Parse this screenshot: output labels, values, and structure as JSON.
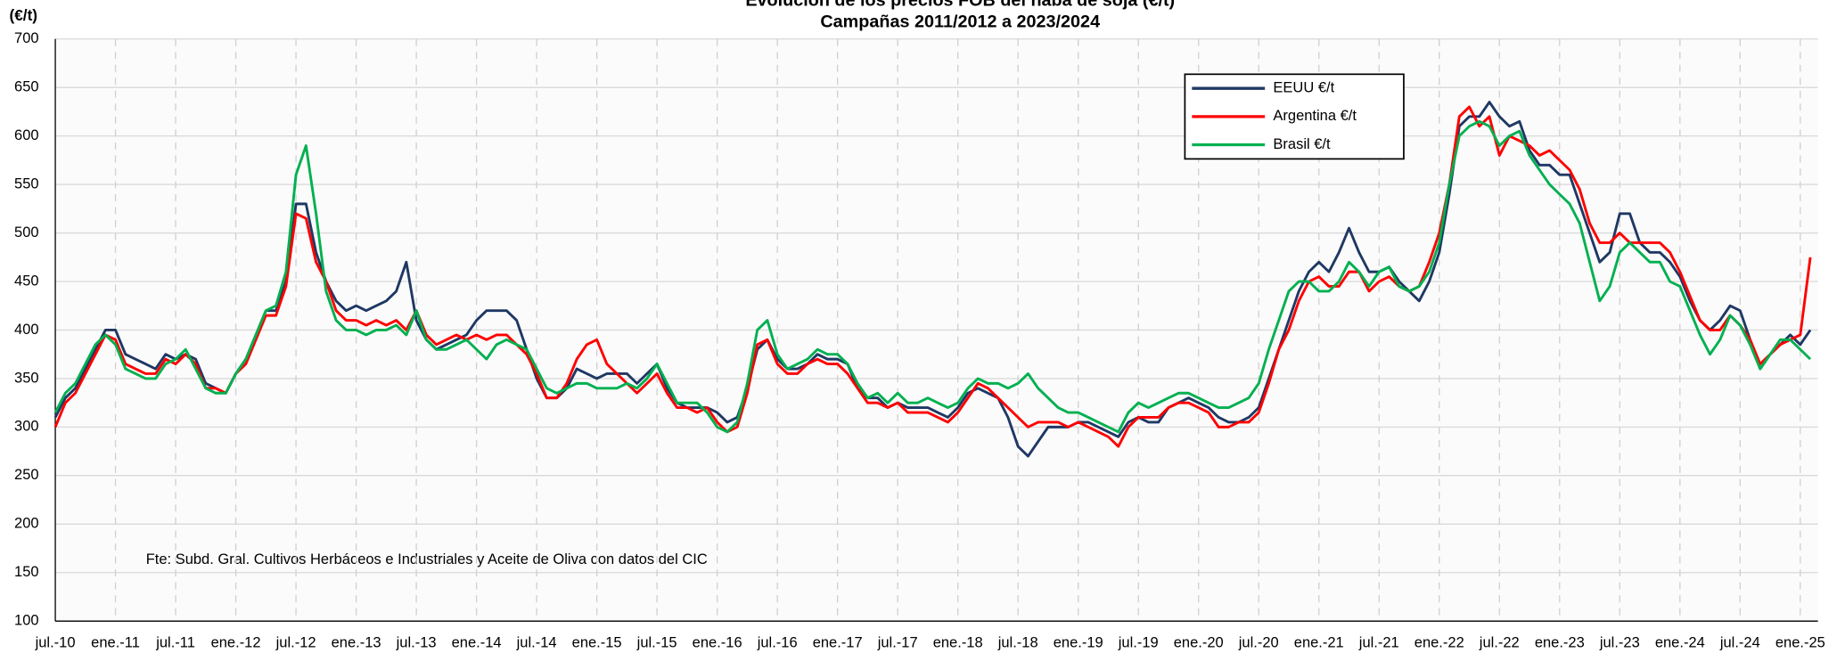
{
  "chart_data": {
    "type": "line",
    "title": "Evolución de los precios FOB del haba de soja (€/t)",
    "subtitle": "Campañas 2011/2012 a 2023/2024",
    "y_label": "(€/t)",
    "annotation": "Fte: Subd. Gral. Cultivos Herbáceos e Industriales y Aceite de Oliva con datos del CIC",
    "ylim": [
      100,
      700
    ],
    "yticks": [
      100,
      150,
      200,
      250,
      300,
      350,
      400,
      450,
      500,
      550,
      600,
      650,
      700
    ],
    "grid": true,
    "legend": "upper right",
    "categories": [
      "jul.-10",
      null,
      null,
      null,
      null,
      null,
      "ene.-11",
      null,
      null,
      null,
      null,
      null,
      "jul.-11",
      null,
      null,
      null,
      null,
      null,
      "ene.-12",
      null,
      null,
      null,
      null,
      null,
      "jul.-12",
      null,
      null,
      null,
      null,
      null,
      "ene.-13",
      null,
      null,
      null,
      null,
      null,
      "jul.-13",
      null,
      null,
      null,
      null,
      null,
      "ene.-14",
      null,
      null,
      null,
      null,
      null,
      "jul.-14",
      null,
      null,
      null,
      null,
      null,
      "ene.-15",
      null,
      null,
      null,
      null,
      null,
      "jul.-15",
      null,
      null,
      null,
      null,
      null,
      "ene.-16",
      null,
      null,
      null,
      null,
      null,
      "jul.-16",
      null,
      null,
      null,
      null,
      null,
      "ene.-17",
      null,
      null,
      null,
      null,
      null,
      "jul.-17",
      null,
      null,
      null,
      null,
      null,
      "ene.-18",
      null,
      null,
      null,
      null,
      null,
      "jul.-18",
      null,
      null,
      null,
      null,
      null,
      "ene.-19",
      null,
      null,
      null,
      null,
      null,
      "jul.-19",
      null,
      null,
      null,
      null,
      null,
      "ene.-20",
      null,
      null,
      null,
      null,
      null,
      "jul.-20",
      null,
      null,
      null,
      null,
      null,
      "ene.-21",
      null,
      null,
      null,
      null,
      null,
      "jul.-21",
      null,
      null,
      null,
      null,
      null,
      "ene.-22",
      null,
      null,
      null,
      null,
      null,
      "jul.-22",
      null,
      null,
      null,
      null,
      null,
      "ene.-23",
      null,
      null,
      null,
      null,
      null,
      "jul.-23",
      null,
      null,
      null,
      null,
      null,
      "ene.-24",
      null,
      null,
      null,
      null,
      null,
      "jul.-24",
      null,
      null,
      null,
      null,
      null,
      "ene.-25",
      null
    ],
    "series": [
      {
        "name": "EEUU €/t",
        "color": "#1f3864",
        "values": [
          310,
          330,
          340,
          360,
          380,
          400,
          400,
          375,
          370,
          365,
          360,
          375,
          370,
          375,
          370,
          345,
          340,
          335,
          355,
          370,
          395,
          420,
          420,
          450,
          530,
          530,
          480,
          450,
          430,
          420,
          425,
          420,
          425,
          430,
          440,
          470,
          410,
          390,
          380,
          385,
          390,
          395,
          410,
          420,
          420,
          420,
          410,
          380,
          350,
          330,
          330,
          340,
          360,
          355,
          350,
          355,
          355,
          355,
          345,
          355,
          365,
          340,
          325,
          320,
          320,
          320,
          315,
          305,
          310,
          340,
          380,
          390,
          370,
          360,
          360,
          365,
          375,
          370,
          370,
          365,
          340,
          330,
          330,
          320,
          325,
          320,
          320,
          320,
          315,
          310,
          320,
          335,
          340,
          335,
          330,
          310,
          280,
          270,
          285,
          300,
          300,
          300,
          305,
          305,
          300,
          295,
          290,
          305,
          310,
          305,
          305,
          320,
          325,
          330,
          325,
          320,
          310,
          305,
          305,
          310,
          320,
          350,
          380,
          410,
          440,
          460,
          470,
          460,
          480,
          505,
          480,
          460,
          460,
          465,
          450,
          440,
          430,
          450,
          480,
          540,
          610,
          620,
          620,
          635,
          620,
          610,
          615,
          585,
          570,
          570,
          560,
          560,
          530,
          500,
          470,
          480,
          520,
          520,
          490,
          480,
          480,
          470,
          455,
          430,
          410,
          400,
          410,
          425,
          420,
          390,
          360,
          375,
          385,
          395,
          385,
          400
        ]
      },
      {
        "name": "Argentina €/t",
        "color": "#ff0000",
        "values": [
          300,
          325,
          335,
          355,
          375,
          395,
          390,
          365,
          360,
          355,
          355,
          370,
          365,
          375,
          365,
          340,
          340,
          335,
          355,
          365,
          390,
          415,
          415,
          445,
          520,
          515,
          470,
          450,
          420,
          410,
          410,
          405,
          410,
          405,
          410,
          400,
          420,
          395,
          385,
          390,
          395,
          390,
          395,
          390,
          395,
          395,
          385,
          375,
          355,
          330,
          330,
          345,
          370,
          385,
          390,
          365,
          355,
          345,
          335,
          345,
          355,
          335,
          320,
          320,
          315,
          320,
          305,
          295,
          300,
          335,
          385,
          390,
          365,
          355,
          355,
          365,
          370,
          365,
          365,
          355,
          340,
          325,
          325,
          320,
          325,
          315,
          315,
          315,
          310,
          305,
          315,
          330,
          345,
          340,
          330,
          320,
          310,
          300,
          305,
          305,
          305,
          300,
          305,
          300,
          295,
          290,
          280,
          300,
          310,
          310,
          310,
          320,
          325,
          325,
          320,
          315,
          300,
          300,
          305,
          305,
          315,
          345,
          380,
          400,
          430,
          450,
          455,
          445,
          445,
          460,
          460,
          440,
          450,
          455,
          445,
          440,
          445,
          470,
          500,
          550,
          620,
          630,
          610,
          620,
          580,
          600,
          595,
          590,
          580,
          585,
          575,
          565,
          545,
          510,
          490,
          490,
          500,
          490,
          490,
          490,
          490,
          480,
          460,
          435,
          410,
          400,
          400,
          415,
          405,
          390,
          365,
          375,
          385,
          390,
          395,
          475
        ]
      },
      {
        "name": "Brasil €/t",
        "color": "#00b050",
        "values": [
          315,
          335,
          345,
          365,
          385,
          395,
          385,
          360,
          355,
          350,
          350,
          365,
          370,
          380,
          360,
          340,
          335,
          335,
          355,
          370,
          395,
          420,
          425,
          460,
          560,
          590,
          520,
          440,
          410,
          400,
          400,
          395,
          400,
          400,
          405,
          395,
          420,
          390,
          380,
          380,
          385,
          390,
          380,
          370,
          385,
          390,
          385,
          380,
          360,
          340,
          335,
          340,
          345,
          345,
          340,
          340,
          340,
          345,
          340,
          350,
          365,
          345,
          325,
          325,
          325,
          315,
          300,
          295,
          305,
          345,
          400,
          410,
          375,
          360,
          365,
          370,
          380,
          375,
          375,
          365,
          345,
          330,
          335,
          325,
          335,
          325,
          325,
          330,
          325,
          320,
          325,
          340,
          350,
          345,
          345,
          340,
          345,
          355,
          340,
          330,
          320,
          315,
          315,
          310,
          305,
          300,
          295,
          315,
          325,
          320,
          325,
          330,
          335,
          335,
          330,
          325,
          320,
          320,
          325,
          330,
          345,
          380,
          410,
          440,
          450,
          450,
          440,
          440,
          450,
          470,
          460,
          445,
          460,
          465,
          445,
          440,
          445,
          460,
          490,
          550,
          600,
          610,
          615,
          610,
          590,
          600,
          605,
          580,
          565,
          550,
          540,
          530,
          510,
          470,
          430,
          445,
          480,
          490,
          480,
          470,
          470,
          450,
          445,
          420,
          395,
          375,
          390,
          415,
          405,
          385,
          360,
          375,
          390,
          390,
          380,
          370
        ]
      }
    ]
  }
}
